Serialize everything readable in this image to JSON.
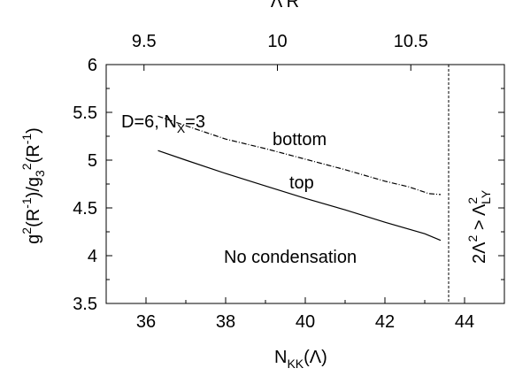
{
  "chart_data": {
    "type": "line",
    "xlabel": {
      "main": "N",
      "sub": "KK",
      "tail": "(Λ)"
    },
    "ylabel": {
      "p1": "g",
      "s1": "2",
      "p2": "(R",
      "s2": "-1",
      "p3": ")/g",
      "sub3": "3",
      "s3": "2",
      "p4": "(R",
      "s4": "-1",
      "p5": ")"
    },
    "top_xlabel": "Λ R",
    "xlim": [
      35,
      45
    ],
    "ylim": [
      3.5,
      6
    ],
    "xticks": [
      "36",
      "38",
      "40",
      "42",
      "44"
    ],
    "yticks": [
      "3.5",
      "4",
      "4.5",
      "5",
      "5.5",
      "6"
    ],
    "top_ticks": [
      {
        "label": "9.5",
        "x": 35.95
      },
      {
        "label": "10",
        "x": 39.3
      },
      {
        "label": "10.5",
        "x": 42.65
      }
    ],
    "series": [
      {
        "style": "dash-dot",
        "x": [
          36.3,
          37.0,
          38.0,
          39.0,
          40.0,
          41.0,
          42.0,
          42.6,
          43.1,
          43.4
        ],
        "y": [
          5.46,
          5.36,
          5.22,
          5.12,
          5.01,
          4.9,
          4.78,
          4.72,
          4.65,
          4.64
        ]
      },
      {
        "style": "solid",
        "x": [
          36.3,
          37.0,
          38.0,
          39.0,
          40.0,
          41.0,
          42.0,
          43.0,
          43.4
        ],
        "y": [
          5.1,
          5.0,
          4.86,
          4.73,
          4.6,
          4.48,
          4.35,
          4.23,
          4.16
        ]
      }
    ],
    "vline": {
      "x": 43.6,
      "style": "dashed"
    },
    "annotations": {
      "params": {
        "pre": "D=6, N",
        "sub": "X",
        "post": "=3"
      },
      "bottom": "bottom",
      "top": "top",
      "no_condensation": "No condensation",
      "inequality": {
        "pre": "2Λ",
        "sup1": "2",
        "mid": " > Λ",
        "sup2": "2",
        "sub2": "LY"
      }
    }
  }
}
